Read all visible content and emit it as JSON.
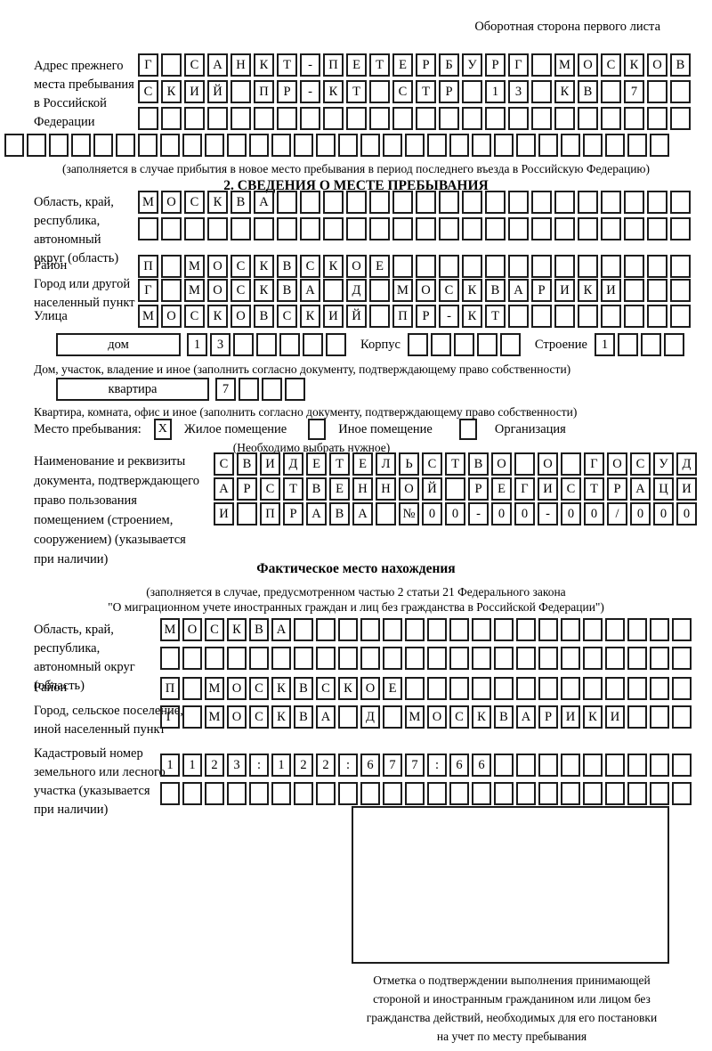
{
  "header": {
    "note": "Оборотная сторона первого листа"
  },
  "prev_address": {
    "label_lines": [
      "Адрес прежнего",
      "места пребывания",
      "в Российской",
      "Федерации"
    ],
    "row1": "Г САНКТ-ПЕТЕРБУРГ МОСКОВ",
    "row2": "СКИЙ ПР-КТ СТР 13 КВ 7",
    "row3": "",
    "row4": "",
    "caption": "(заполняется в случае прибытия в новое место пребывания в период последнего въезда в Российскую Федерацию)"
  },
  "section2": {
    "title": "2. СВЕДЕНИЯ О МЕСТЕ ПРЕБЫВАНИЯ",
    "region": {
      "label_lines": [
        "Область, край,",
        "республика,",
        "автономный",
        "округ (область)"
      ],
      "row1": "МОСКВА",
      "row2": ""
    },
    "district": {
      "label": "Район",
      "row": "П МОСКВСКОЕ"
    },
    "city": {
      "label_lines": [
        "Город или другой",
        "населенный пункт"
      ],
      "row": "Г МОСКВА Д МОСКВАРИКИ"
    },
    "street": {
      "label": "Улица",
      "row": "МОСКОВСКИЙ ПР-КТ"
    },
    "house": {
      "type_label": "дом",
      "cells": "13",
      "korpus_label": "Корпус",
      "korpus_cells": "",
      "stroenie_label": "Строение",
      "stroenie_cells": "1",
      "caption": "Дом, участок, владение и иное (заполнить согласно документу, подтверждающему право собственности)"
    },
    "apartment": {
      "type_label": "квартира",
      "cells": "7",
      "caption": "Квартира, комната, офис и иное (заполнить согласно документу, подтверждающему право собственности)"
    },
    "stay_type": {
      "label": "Место пребывания:",
      "options": [
        {
          "label": "Жилое помещение",
          "mark": "X"
        },
        {
          "label": "Иное помещение",
          "mark": ""
        },
        {
          "label": "Организация",
          "mark": ""
        }
      ],
      "note": "(Необходимо выбрать нужное)"
    },
    "document": {
      "label_lines": [
        "Наименование и реквизиты",
        "документа, подтверждающего",
        "право пользования",
        "помещением (строением,",
        "сооружением) (указывается",
        "при наличии)"
      ],
      "row1": "СВИДЕТЕЛЬСТВО О ГОСУД",
      "row2": "АРСТВЕННОЙ РЕГИСТРАЦИ",
      "row3": "И ПРАВА №00-00-00/000"
    }
  },
  "actual_location": {
    "title": "Фактическое место нахождения",
    "caption_lines": [
      "(заполняется в случае, предусмотренном частью 2 статьи 21 Федерального закона",
      "\"О миграционном учете иностранных граждан и лиц без гражданства в Российской Федерации\")"
    ],
    "region": {
      "label_lines": [
        "Область, край,",
        "республика,",
        "автономный округ",
        "(область)"
      ],
      "row1": "МОСКВА",
      "row2": ""
    },
    "district": {
      "label": "Район",
      "row": "П МОСКВСКОЕ"
    },
    "city": {
      "label_lines": [
        "Город, сельское поселение,",
        "иной населенный пункт"
      ],
      "row": "Г МОСКВА Д МОСКВАРИКИ"
    },
    "cadastre": {
      "label_lines": [
        "Кадастровый номер",
        "земельного или лесного",
        "участка (указывается",
        "при наличии)"
      ],
      "row1": "1123:122:677:66",
      "row2": ""
    }
  },
  "confirmation": {
    "caption_lines": [
      "Отметка о подтверждении выполнения принимающей",
      "стороной и иностранным гражданином или лицом без",
      "гражданства действий, необходимых для его постановки",
      "на учет по месту пребывания"
    ]
  }
}
